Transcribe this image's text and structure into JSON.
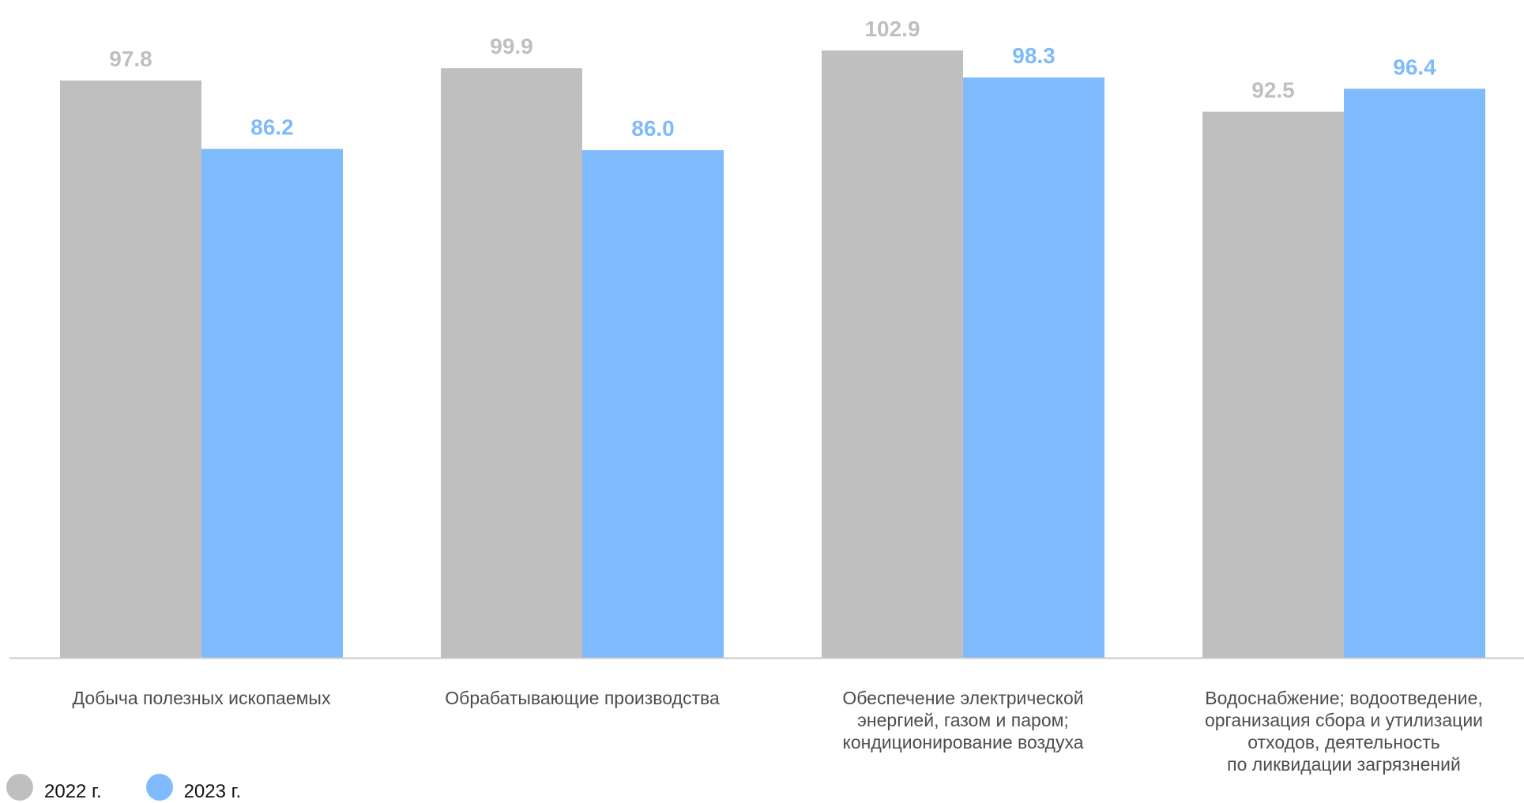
{
  "colors": {
    "series_2022": "#bfbfbf",
    "series_2023": "#7fbafc",
    "axis": "#c8c8c8",
    "category_text": "#4d4d4d"
  },
  "legend": [
    {
      "label": "2022 г.",
      "color": "#bfbfbf"
    },
    {
      "label": "2023 г.",
      "color": "#7fbafc"
    }
  ],
  "chart_data": {
    "type": "bar",
    "categories": [
      [
        "Добыча полезных ископаемых"
      ],
      [
        "Обрабатывающие производства"
      ],
      [
        "Обеспечение электрической",
        "энергией, газом и паром;",
        "кондиционирование воздуха"
      ],
      [
        "Водоснабжение; водоотведение,",
        "организация сбора и утилизации",
        "отходов, деятельность",
        "по ликвидации загрязнений"
      ]
    ],
    "series": [
      {
        "name": "2022 г.",
        "color": "#bfbfbf",
        "values": [
          97.8,
          99.9,
          102.9,
          92.5
        ],
        "labels": [
          "97.8",
          "99.9",
          "102.9",
          "92.5"
        ]
      },
      {
        "name": "2023 г.",
        "color": "#7fbafc",
        "values": [
          86.2,
          86.0,
          98.3,
          96.4
        ],
        "labels": [
          "86.2",
          "86.0",
          "98.3",
          "96.4"
        ]
      }
    ],
    "title": "",
    "xlabel": "",
    "ylabel": "",
    "ylim": [
      0,
      105
    ],
    "grid": false,
    "legend_position": "bottom-left"
  }
}
